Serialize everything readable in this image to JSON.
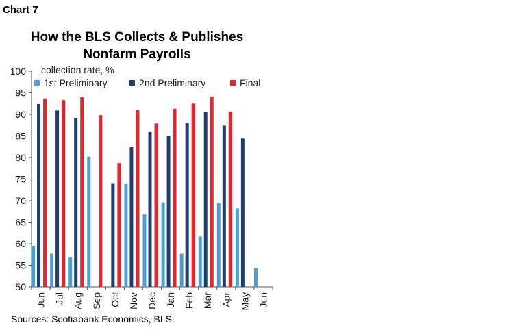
{
  "chart_label": "Chart 7",
  "source": "Sources: Scotiabank Economics, BLS.",
  "chart_data": {
    "type": "bar",
    "title": "How the BLS Collects & Publishes Nonfarm Payrolls",
    "ylabel": "collection rate, %",
    "xlabel": "",
    "ylim": [
      50,
      100
    ],
    "yticks": [
      50,
      55,
      60,
      65,
      70,
      75,
      80,
      85,
      90,
      95,
      100
    ],
    "categories": [
      "Jun",
      "Jul",
      "Aug",
      "Sep",
      "Oct",
      "Nov",
      "Dec",
      "Jan",
      "Feb",
      "Mar",
      "Apr",
      "May",
      "Jun"
    ],
    "legend_position": "top",
    "grid": false,
    "series": [
      {
        "name": "1st Preliminary",
        "color": "#4a9fd4",
        "values": [
          59.5,
          57.7,
          56.8,
          80.2,
          null,
          73.8,
          66.8,
          69.6,
          57.7,
          61.7,
          69.4,
          68.2,
          54.4
        ]
      },
      {
        "name": "2nd Preliminary",
        "color": "#1f3f73",
        "values": [
          92.4,
          90.9,
          89.2,
          null,
          73.9,
          82.4,
          85.9,
          85.0,
          88.0,
          90.5,
          87.4,
          84.4,
          null
        ]
      },
      {
        "name": "Final",
        "color": "#e8242e",
        "values": [
          93.7,
          93.3,
          94.0,
          89.8,
          78.7,
          91.0,
          87.9,
          91.3,
          92.5,
          94.1,
          90.6,
          null,
          null
        ]
      }
    ]
  }
}
